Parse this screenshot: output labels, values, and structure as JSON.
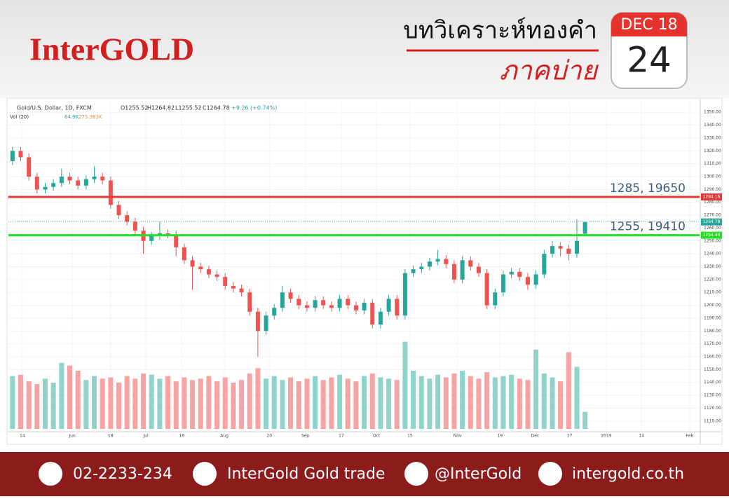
{
  "header": {
    "logo": "InterGOLD",
    "title": "บทวิเคราะห์ทองคำ",
    "subtitle": "ภาคบ่าย",
    "calendar_month": "DEC 18",
    "calendar_day": "24"
  },
  "chart_data": {
    "type": "candlestick",
    "title": "Gold/U.S. Dollar, 1D, FXCM",
    "ohlc_legend": [
      "O1255.52",
      "H1264.82",
      "L1255.52",
      "C1264.78",
      "+9.26 (+0.74%)"
    ],
    "volume_legend": [
      "Vol (20)",
      "64.9K",
      "275.383K"
    ],
    "colors": {
      "up": "#26a69a",
      "down": "#ef5350",
      "volume_up": "#8fd3cb",
      "volume_down": "#f5a3a3"
    },
    "candles": [
      [
        1312,
        1323,
        1309,
        1320
      ],
      [
        1320,
        1323,
        1312,
        1315
      ],
      [
        1315,
        1318,
        1297,
        1300
      ],
      [
        1300,
        1303,
        1287,
        1290
      ],
      [
        1290,
        1295,
        1287,
        1292
      ],
      [
        1292,
        1298,
        1289,
        1295
      ],
      [
        1295,
        1306,
        1292,
        1300
      ],
      [
        1300,
        1303,
        1294,
        1297
      ],
      [
        1297,
        1300,
        1290,
        1293
      ],
      [
        1293,
        1301,
        1290,
        1298
      ],
      [
        1298,
        1308,
        1295,
        1300
      ],
      [
        1300,
        1303,
        1294,
        1297
      ],
      [
        1297,
        1300,
        1275,
        1278
      ],
      [
        1278,
        1281,
        1267,
        1270
      ],
      [
        1270,
        1273,
        1262,
        1265
      ],
      [
        1265,
        1268,
        1255,
        1258
      ],
      [
        1258,
        1261,
        1240,
        1250
      ],
      [
        1250,
        1257,
        1247,
        1254
      ],
      [
        1254,
        1265,
        1251,
        1256
      ],
      [
        1256,
        1259,
        1252,
        1255
      ],
      [
        1255,
        1258,
        1238,
        1245
      ],
      [
        1245,
        1248,
        1232,
        1235
      ],
      [
        1235,
        1238,
        1212,
        1230
      ],
      [
        1230,
        1233,
        1225,
        1228
      ],
      [
        1228,
        1231,
        1221,
        1224
      ],
      [
        1224,
        1227,
        1219,
        1222
      ],
      [
        1222,
        1225,
        1212,
        1215
      ],
      [
        1215,
        1218,
        1210,
        1213
      ],
      [
        1213,
        1216,
        1207,
        1210
      ],
      [
        1210,
        1213,
        1192,
        1195
      ],
      [
        1195,
        1198,
        1160,
        1180
      ],
      [
        1180,
        1195,
        1177,
        1192
      ],
      [
        1192,
        1201,
        1189,
        1198
      ],
      [
        1198,
        1215,
        1195,
        1210
      ],
      [
        1210,
        1213,
        1202,
        1205
      ],
      [
        1205,
        1208,
        1197,
        1200
      ],
      [
        1200,
        1203,
        1195,
        1198
      ],
      [
        1198,
        1207,
        1195,
        1204
      ],
      [
        1204,
        1207,
        1197,
        1200
      ],
      [
        1200,
        1203,
        1195,
        1198
      ],
      [
        1198,
        1208,
        1195,
        1205
      ],
      [
        1205,
        1208,
        1197,
        1200
      ],
      [
        1200,
        1203,
        1193,
        1196
      ],
      [
        1196,
        1205,
        1193,
        1202
      ],
      [
        1202,
        1205,
        1182,
        1185
      ],
      [
        1185,
        1198,
        1182,
        1195
      ],
      [
        1195,
        1208,
        1192,
        1205
      ],
      [
        1205,
        1208,
        1189,
        1192
      ],
      [
        1192,
        1228,
        1189,
        1225
      ],
      [
        1225,
        1231,
        1222,
        1228
      ],
      [
        1228,
        1233,
        1225,
        1230
      ],
      [
        1230,
        1237,
        1227,
        1234
      ],
      [
        1234,
        1243,
        1231,
        1236
      ],
      [
        1236,
        1239,
        1229,
        1232
      ],
      [
        1232,
        1235,
        1217,
        1220
      ],
      [
        1220,
        1238,
        1217,
        1235
      ],
      [
        1235,
        1238,
        1227,
        1230
      ],
      [
        1230,
        1233,
        1222,
        1225
      ],
      [
        1225,
        1228,
        1197,
        1200
      ],
      [
        1200,
        1213,
        1197,
        1210
      ],
      [
        1210,
        1227,
        1207,
        1224
      ],
      [
        1224,
        1229,
        1221,
        1226
      ],
      [
        1226,
        1229,
        1219,
        1222
      ],
      [
        1222,
        1225,
        1212,
        1216
      ],
      [
        1216,
        1227,
        1213,
        1224
      ],
      [
        1224,
        1243,
        1221,
        1240
      ],
      [
        1240,
        1250,
        1237,
        1246
      ],
      [
        1246,
        1249,
        1238,
        1244
      ],
      [
        1244,
        1247,
        1235,
        1240
      ],
      [
        1240,
        1267,
        1237,
        1250
      ],
      [
        1255.52,
        1264.82,
        1255.52,
        1264.78
      ]
    ],
    "volumes": [
      200,
      205,
      180,
      170,
      190,
      175,
      250,
      240,
      220,
      185,
      200,
      190,
      195,
      175,
      200,
      190,
      210,
      205,
      190,
      200,
      180,
      195,
      185,
      190,
      200,
      180,
      195,
      175,
      185,
      210,
      230,
      190,
      200,
      185,
      195,
      180,
      190,
      200,
      185,
      195,
      205,
      190,
      180,
      200,
      210,
      195,
      190,
      185,
      330,
      220,
      200,
      190,
      205,
      195,
      210,
      220,
      200,
      190,
      215,
      195,
      200,
      205,
      190,
      185,
      300,
      210,
      195,
      180,
      290,
      235,
      64.9
    ],
    "volume_ylim": [
      0,
      350
    ],
    "xlim": [
      -0.5,
      84
    ],
    "xticks": [
      {
        "value": 1.2,
        "label": "14"
      },
      {
        "value": 7.3,
        "label": "Jun"
      },
      {
        "value": 12,
        "label": "18"
      },
      {
        "value": 16.3,
        "label": "Jul"
      },
      {
        "value": 20.7,
        "label": "16"
      },
      {
        "value": 25.9,
        "label": "Aug"
      },
      {
        "value": 31.4,
        "label": "20"
      },
      {
        "value": 35.8,
        "label": "Sep"
      },
      {
        "value": 40.2,
        "label": "17"
      },
      {
        "value": 44.5,
        "label": "Oct"
      },
      {
        "value": 48.6,
        "label": "15"
      },
      {
        "value": 54.4,
        "label": "Nov"
      },
      {
        "value": 59.6,
        "label": "19"
      },
      {
        "value": 63.9,
        "label": "Dec"
      },
      {
        "value": 68.1,
        "label": "17"
      },
      {
        "value": 72.6,
        "label": "2019"
      },
      {
        "value": 76.9,
        "label": "14"
      },
      {
        "value": 82.8,
        "label": "Feb"
      }
    ],
    "ylim": [
      1105,
      1355
    ],
    "yticks": [
      {
        "value": 1350,
        "label": "1350.00"
      },
      {
        "value": 1340,
        "label": "1340.00"
      },
      {
        "value": 1330,
        "label": "1330.00"
      },
      {
        "value": 1320,
        "label": "1320.00"
      },
      {
        "value": 1310,
        "label": "1310.00"
      },
      {
        "value": 1300,
        "label": "1300.00"
      },
      {
        "value": 1290,
        "label": "1290.00"
      },
      {
        "value": 1280,
        "label": "1280.00"
      },
      {
        "value": 1270,
        "label": "1270.00"
      },
      {
        "value": 1260,
        "label": "1260.00"
      },
      {
        "value": 1250,
        "label": "1250.00"
      },
      {
        "value": 1240,
        "label": "1240.00"
      },
      {
        "value": 1230,
        "label": "1230.00"
      },
      {
        "value": 1220,
        "label": "1220.00"
      },
      {
        "value": 1210,
        "label": "1210.00"
      },
      {
        "value": 1200,
        "label": "1200.00"
      },
      {
        "value": 1190,
        "label": "1190.00"
      },
      {
        "value": 1180,
        "label": "1180.00"
      },
      {
        "value": 1170,
        "label": "1170.00"
      },
      {
        "value": 1160,
        "label": "1160.00"
      },
      {
        "value": 1150,
        "label": "1150.00"
      },
      {
        "value": 1140,
        "label": "1140.00"
      },
      {
        "value": 1130,
        "label": "1130.00"
      },
      {
        "value": 1120,
        "label": "1120.00"
      },
      {
        "value": 1110,
        "label": "1110.00"
      }
    ],
    "levels": [
      {
        "value": 1284.16,
        "color": "#e53935",
        "annotation": "1285, 19650"
      },
      {
        "value": 1254.44,
        "color": "#22e022",
        "annotation": "1255, 19410"
      }
    ],
    "last_price": {
      "value": 1264.78,
      "color": "#26a69a"
    },
    "grid": true
  },
  "footer": {
    "phone": "02-2233-234",
    "facebook": "InterGold Gold trade",
    "line": "@InterGold",
    "website": "intergold.co.th"
  }
}
